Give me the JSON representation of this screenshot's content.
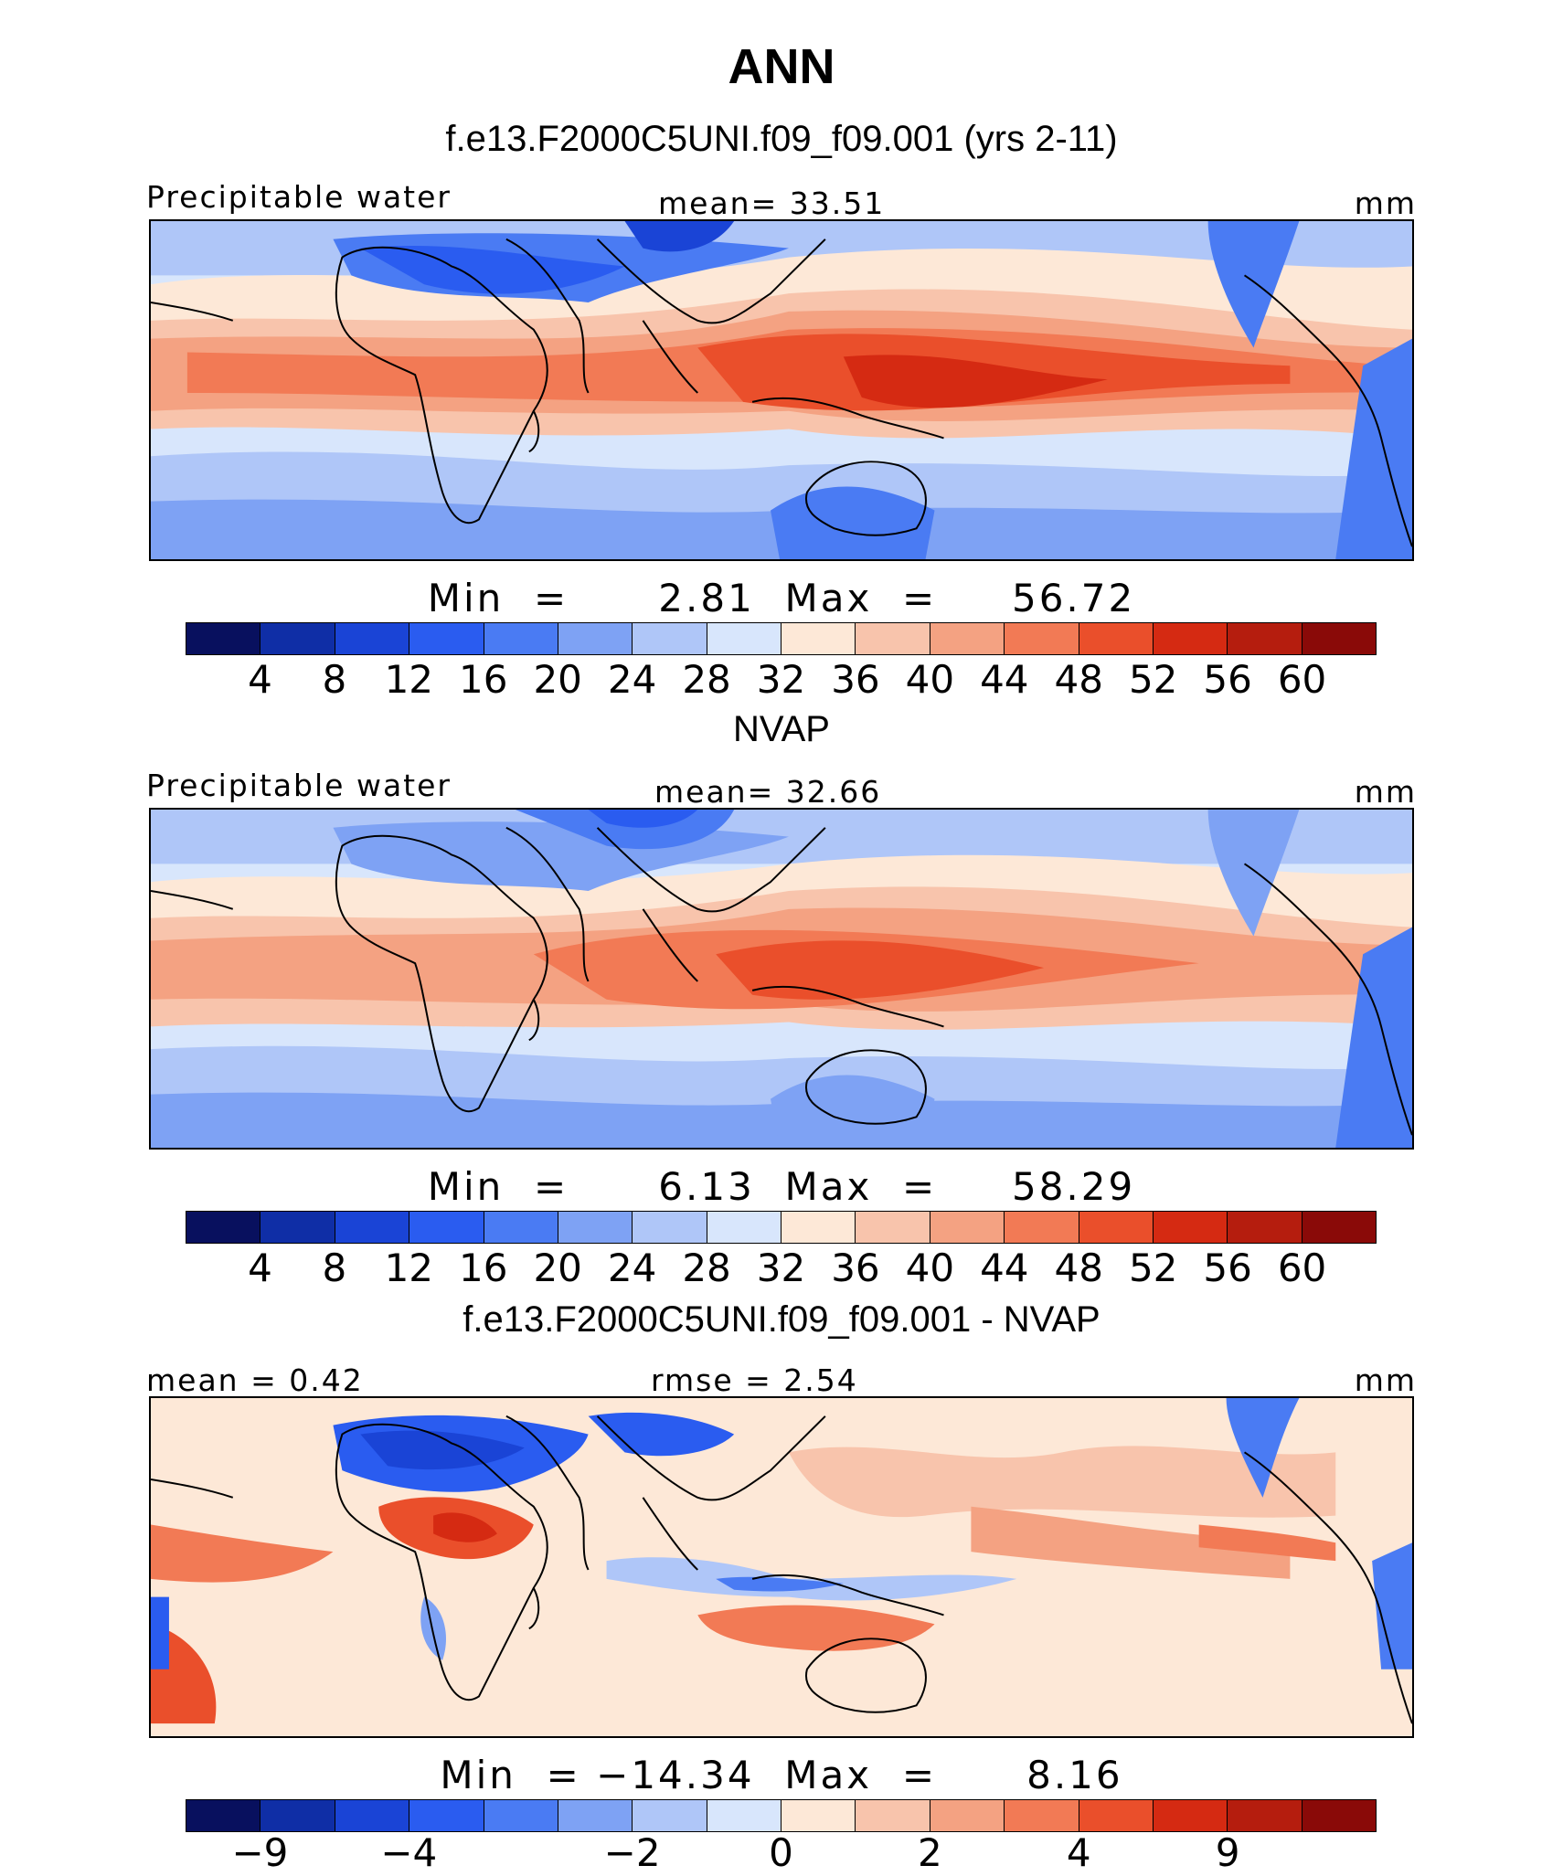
{
  "title": "ANN",
  "colors": {
    "precip_palette": [
      "#08105e",
      "#0f2ea6",
      "#1a44d6",
      "#2a5cf0",
      "#4a7bf3",
      "#7ea2f4",
      "#afc6f8",
      "#d8e6fc",
      "#fde8d7",
      "#f8c4ac",
      "#f4a282",
      "#f27a55",
      "#ea4f2b",
      "#d52a12",
      "#b51d0e",
      "#8a0a08"
    ],
    "diff_palette": [
      "#08105e",
      "#0f2ea6",
      "#1a44d6",
      "#2a5cf0",
      "#4a7bf3",
      "#7ea2f4",
      "#afc6f8",
      "#d8e6fc",
      "#fde8d7",
      "#f8c4ac",
      "#f4a282",
      "#f27a55",
      "#ea4f2b",
      "#d52a12",
      "#b51d0e",
      "#8a0a08"
    ]
  },
  "panels": [
    {
      "title": "f.e13.F2000C5UNI.f09_f09.001 (yrs 2-11)",
      "left_label": "Precipitable water",
      "center_label": "mean=   33.51",
      "right_label": "mm",
      "min_text": "Min  =      2.81",
      "max_text": "Max  =     56.72",
      "ticks": [
        "4",
        "8",
        "12",
        "16",
        "20",
        "24",
        "28",
        "32",
        "36",
        "40",
        "44",
        "48",
        "52",
        "56",
        "60"
      ]
    },
    {
      "title": "NVAP",
      "left_label": "Precipitable water",
      "center_label": "mean=   32.66",
      "right_label": "mm",
      "min_text": "Min  =      6.13",
      "max_text": "Max  =     58.29",
      "ticks": [
        "4",
        "8",
        "12",
        "16",
        "20",
        "24",
        "28",
        "32",
        "36",
        "40",
        "44",
        "48",
        "52",
        "56",
        "60"
      ]
    },
    {
      "title": "f.e13.F2000C5UNI.f09_f09.001 - NVAP",
      "left_label": "mean  =    0.42",
      "center_label": "rmse  =    2.54",
      "right_label": "mm",
      "min_text": "Min  = −14.34",
      "max_text": "Max  =      8.16",
      "ticks": [
        "−9",
        "−4",
        "−2",
        "0",
        "2",
        "4",
        "9"
      ]
    }
  ]
}
